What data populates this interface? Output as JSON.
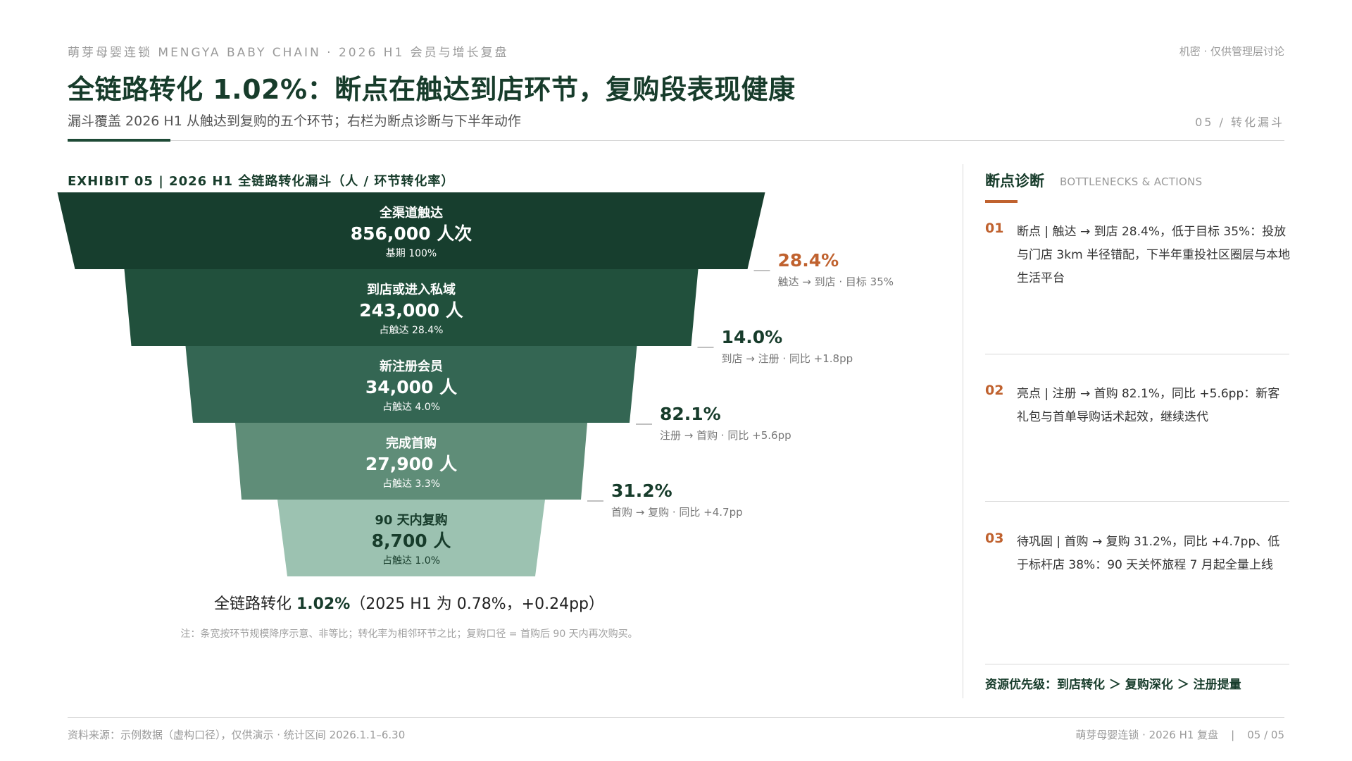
{
  "header": {
    "top_left": "萌芽母婴连锁 MENGYA BABY CHAIN · 2026 H1 会员与增长复盘",
    "top_right": "机密 · 仅供管理层讨论",
    "title": "全链路转化 1.02%：断点在触达到店环节，复购段表现健康",
    "subtitle": "漏斗覆盖 2026 H1 从触达到复购的五个环节；右栏为断点诊断与下半年动作",
    "page_tag": "05 / 转化漏斗"
  },
  "exhibit_title": "EXHIBIT 05 | 2026 H1 全链路转化漏斗（人 / 环节转化率）",
  "colors": {
    "stage_fills": [
      "#173e2e",
      "#21503c",
      "#346653",
      "#5f8d78",
      "#9cc2b1"
    ],
    "stage_text": [
      "#ffffff",
      "#ffffff",
      "#ffffff",
      "#ffffff",
      "#173c2b"
    ],
    "accent_orange": "#c0622f",
    "dark_green": "#173c2b"
  },
  "chart_data": {
    "type": "funnel",
    "stages": [
      {
        "name": "全渠道触达",
        "value": 856000,
        "value_label": "856,000 人次",
        "share_label": "基期 100%"
      },
      {
        "name": "到店或进入私域",
        "value": 243000,
        "value_label": "243,000 人",
        "share_label": "占触达 28.4%"
      },
      {
        "name": "新注册会员",
        "value": 34000,
        "value_label": "34,000 人",
        "share_label": "占触达 4.0%"
      },
      {
        "name": "完成首购",
        "value": 27900,
        "value_label": "27,900 人",
        "share_label": "占触达 3.3%"
      },
      {
        "name": "90 天内复购",
        "value": 8700,
        "value_label": "8,700 人",
        "share_label": "占触达 1.0%"
      }
    ],
    "conversions": [
      {
        "rate": "28.4%",
        "desc": "触达 → 到店 · 目标 35%",
        "highlight": true
      },
      {
        "rate": "14.0%",
        "desc": "到店 → 注册 · 同比 +1.8pp",
        "highlight": false
      },
      {
        "rate": "82.1%",
        "desc": "注册 → 首购 · 同比 +5.6pp",
        "highlight": false
      },
      {
        "rate": "31.2%",
        "desc": "首购 → 复购 · 同比 +4.7pp",
        "highlight": false
      }
    ],
    "total": {
      "prefix": "全链路转化 ",
      "value": "1.02%",
      "suffix": "（2025 H1 为 0.78%，+0.24pp）"
    },
    "note": "注：条宽按环节规模降序示意、非等比；转化率为相邻环节之比；复购口径 = 首购后 90 天内再次购买。"
  },
  "diagnosis": {
    "title": "断点诊断",
    "subtitle": "BOTTLENECKS & ACTIONS",
    "items": [
      {
        "num": "01",
        "text": "断点 | 触达 → 到店 28.4%，低于目标 35%：投放与门店 3km 半径错配，下半年重投社区圈层与本地生活平台"
      },
      {
        "num": "02",
        "text": "亮点 | 注册 → 首购 82.1%，同比 +5.6pp：新客礼包与首单导购话术起效，继续迭代"
      },
      {
        "num": "03",
        "text": "待巩固 | 首购 → 复购 31.2%，同比 +4.7pp、低于标杆店 38%：90 天关怀旅程 7 月起全量上线"
      }
    ],
    "priority": "资源优先级：到店转化 ＞ 复购深化 ＞ 注册提量"
  },
  "footer": {
    "left": "资料来源：示例数据（虚构口径），仅供演示 · 统计区间 2026.1.1–6.30",
    "right_text": "萌芽母婴连锁 · 2026 H1 复盘",
    "separator": "|",
    "page": "05 / 05"
  }
}
